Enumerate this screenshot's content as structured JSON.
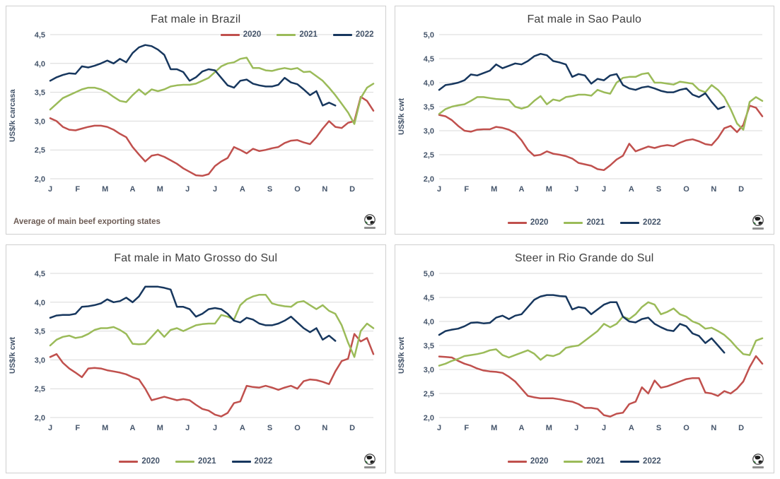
{
  "months": [
    "J",
    "F",
    "M",
    "A",
    "M",
    "J",
    "J",
    "A",
    "S",
    "O",
    "N",
    "D"
  ],
  "colors": {
    "red_2020": "#C0504D",
    "green_2021": "#9BBB59",
    "navy_2022": "#17375E",
    "gridline": "#d9d9d9",
    "axis_text": "#44546A",
    "title_text": "#3f3f3f"
  },
  "footnote": "Average  of main beef exporting states",
  "logo_name": "globe-logo",
  "chart_data": [
    {
      "type": "line",
      "title": "Fat male in Brazil",
      "ylabel": "US$/k carcasa",
      "legend_position": "top-right",
      "footnote": "Average  of main beef exporting states",
      "ylim": [
        2.0,
        4.5
      ],
      "y_ticks": [
        "2,0",
        "2,5",
        "3,0",
        "3,5",
        "4,0",
        "4,5"
      ],
      "x_tick_labels": [
        "J",
        "F",
        "M",
        "A",
        "M",
        "J",
        "J",
        "A",
        "S",
        "O",
        "N",
        "D"
      ],
      "grid": true,
      "series": [
        {
          "name": "2020",
          "color": "#C0504D",
          "values": [
            3.05,
            3.0,
            2.9,
            2.85,
            2.84,
            2.87,
            2.9,
            2.92,
            2.92,
            2.9,
            2.85,
            2.78,
            2.72,
            2.55,
            2.42,
            2.3,
            2.4,
            2.42,
            2.38,
            2.32,
            2.26,
            2.18,
            2.12,
            2.06,
            2.05,
            2.08,
            2.22,
            2.3,
            2.36,
            2.55,
            2.5,
            2.44,
            2.52,
            2.48,
            2.5,
            2.53,
            2.55,
            2.62,
            2.66,
            2.67,
            2.63,
            2.6,
            2.72,
            2.87,
            3.0,
            2.9,
            2.88,
            2.97,
            3.0,
            3.42,
            3.35,
            3.18
          ]
        },
        {
          "name": "2021",
          "color": "#9BBB59",
          "values": [
            3.2,
            3.3,
            3.4,
            3.45,
            3.5,
            3.55,
            3.58,
            3.58,
            3.55,
            3.5,
            3.42,
            3.35,
            3.33,
            3.45,
            3.55,
            3.46,
            3.55,
            3.52,
            3.55,
            3.6,
            3.62,
            3.63,
            3.63,
            3.65,
            3.7,
            3.75,
            3.85,
            3.95,
            4.0,
            4.02,
            4.08,
            4.1,
            3.92,
            3.92,
            3.88,
            3.87,
            3.9,
            3.92,
            3.9,
            3.92,
            3.85,
            3.86,
            3.78,
            3.7,
            3.58,
            3.45,
            3.3,
            3.15,
            2.95,
            3.4,
            3.58,
            3.65
          ]
        },
        {
          "name": "2022",
          "color": "#17375E",
          "values": [
            3.7,
            3.76,
            3.8,
            3.83,
            3.82,
            3.95,
            3.93,
            3.96,
            4.0,
            4.05,
            4.0,
            4.08,
            4.02,
            4.18,
            4.28,
            4.32,
            4.3,
            4.24,
            4.15,
            3.9,
            3.9,
            3.85,
            3.7,
            3.76,
            3.86,
            3.9,
            3.88,
            3.75,
            3.62,
            3.58,
            3.7,
            3.72,
            3.65,
            3.62,
            3.6,
            3.6,
            3.63,
            3.75,
            3.67,
            3.64,
            3.55,
            3.45,
            3.52,
            3.27,
            3.32,
            3.27
          ]
        }
      ]
    },
    {
      "type": "line",
      "title": "Fat male in Sao Paulo",
      "ylabel": "US$/k cwt",
      "legend_position": "bottom",
      "ylim": [
        2.0,
        5.0
      ],
      "y_ticks": [
        "2,0",
        "2,5",
        "3,0",
        "3,5",
        "4,0",
        "4,5",
        "5,0"
      ],
      "x_tick_labels": [
        "J",
        "F",
        "M",
        "A",
        "M",
        "J",
        "J",
        "A",
        "S",
        "O",
        "N",
        "D"
      ],
      "grid": true,
      "series": [
        {
          "name": "2020",
          "color": "#C0504D",
          "values": [
            3.33,
            3.3,
            3.22,
            3.1,
            3.0,
            2.98,
            3.02,
            3.03,
            3.03,
            3.08,
            3.06,
            3.02,
            2.95,
            2.8,
            2.6,
            2.48,
            2.5,
            2.57,
            2.52,
            2.5,
            2.47,
            2.42,
            2.33,
            2.3,
            2.27,
            2.2,
            2.18,
            2.28,
            2.4,
            2.48,
            2.73,
            2.57,
            2.62,
            2.67,
            2.64,
            2.68,
            2.7,
            2.68,
            2.75,
            2.8,
            2.82,
            2.78,
            2.72,
            2.7,
            2.85,
            3.05,
            3.1,
            2.97,
            3.12,
            3.52,
            3.48,
            3.3
          ]
        },
        {
          "name": "2021",
          "color": "#9BBB59",
          "values": [
            3.35,
            3.45,
            3.5,
            3.53,
            3.55,
            3.62,
            3.7,
            3.7,
            3.68,
            3.66,
            3.65,
            3.64,
            3.5,
            3.46,
            3.5,
            3.62,
            3.72,
            3.55,
            3.65,
            3.62,
            3.7,
            3.72,
            3.75,
            3.75,
            3.73,
            3.85,
            3.8,
            3.77,
            4.0,
            4.1,
            4.12,
            4.12,
            4.18,
            4.2,
            4.0,
            4.0,
            3.98,
            3.96,
            4.02,
            4.0,
            3.98,
            3.85,
            3.8,
            3.95,
            3.85,
            3.7,
            3.45,
            3.15,
            3.02,
            3.6,
            3.7,
            3.62
          ]
        },
        {
          "name": "2022",
          "color": "#17375E",
          "values": [
            3.85,
            3.95,
            3.97,
            4.0,
            4.05,
            4.17,
            4.15,
            4.2,
            4.25,
            4.38,
            4.3,
            4.35,
            4.4,
            4.38,
            4.45,
            4.55,
            4.6,
            4.57,
            4.45,
            4.42,
            4.38,
            4.12,
            4.18,
            4.15,
            3.98,
            4.08,
            4.05,
            4.15,
            4.18,
            3.95,
            3.88,
            3.85,
            3.9,
            3.92,
            3.88,
            3.83,
            3.8,
            3.8,
            3.85,
            3.88,
            3.75,
            3.7,
            3.78,
            3.6,
            3.45,
            3.5
          ]
        }
      ]
    },
    {
      "type": "line",
      "title": "Fat male in Mato Grosso do Sul",
      "ylabel": "US$/k cwt",
      "legend_position": "bottom",
      "ylim": [
        2.0,
        4.5
      ],
      "y_ticks": [
        "2,0",
        "2,5",
        "3,0",
        "3,5",
        "4,0",
        "4,5"
      ],
      "x_tick_labels": [
        "J",
        "F",
        "M",
        "A",
        "M",
        "J",
        "J",
        "A",
        "S",
        "O",
        "N",
        "D"
      ],
      "grid": true,
      "series": [
        {
          "name": "2020",
          "color": "#C0504D",
          "values": [
            3.05,
            3.1,
            2.95,
            2.85,
            2.78,
            2.7,
            2.85,
            2.86,
            2.85,
            2.82,
            2.8,
            2.78,
            2.75,
            2.7,
            2.66,
            2.5,
            2.3,
            2.33,
            2.36,
            2.33,
            2.3,
            2.32,
            2.3,
            2.22,
            2.15,
            2.12,
            2.05,
            2.02,
            2.08,
            2.25,
            2.28,
            2.55,
            2.53,
            2.52,
            2.55,
            2.52,
            2.48,
            2.52,
            2.55,
            2.5,
            2.63,
            2.66,
            2.65,
            2.62,
            2.58,
            2.8,
            2.98,
            3.02,
            3.45,
            3.32,
            3.38,
            3.1
          ]
        },
        {
          "name": "2021",
          "color": "#9BBB59",
          "values": [
            3.25,
            3.35,
            3.4,
            3.42,
            3.38,
            3.4,
            3.45,
            3.52,
            3.55,
            3.55,
            3.57,
            3.52,
            3.45,
            3.28,
            3.27,
            3.28,
            3.4,
            3.52,
            3.4,
            3.52,
            3.55,
            3.5,
            3.55,
            3.6,
            3.62,
            3.63,
            3.63,
            3.78,
            3.75,
            3.7,
            3.95,
            4.05,
            4.1,
            4.13,
            4.13,
            3.98,
            3.95,
            3.93,
            3.92,
            4.0,
            4.02,
            3.95,
            3.88,
            3.95,
            3.85,
            3.8,
            3.6,
            3.3,
            3.05,
            3.5,
            3.63,
            3.55
          ]
        },
        {
          "name": "2022",
          "color": "#17375E",
          "values": [
            3.73,
            3.77,
            3.78,
            3.78,
            3.8,
            3.92,
            3.93,
            3.95,
            3.98,
            4.05,
            4.0,
            4.02,
            4.08,
            4.0,
            4.1,
            4.27,
            4.27,
            4.27,
            4.25,
            4.22,
            3.92,
            3.92,
            3.88,
            3.75,
            3.8,
            3.88,
            3.9,
            3.88,
            3.8,
            3.68,
            3.65,
            3.73,
            3.7,
            3.63,
            3.6,
            3.6,
            3.63,
            3.68,
            3.75,
            3.65,
            3.55,
            3.48,
            3.55,
            3.35,
            3.42,
            3.33
          ]
        }
      ]
    },
    {
      "type": "line",
      "title": "Steer  in Rio Grande do Sul",
      "ylabel": "US$/k cwt",
      "legend_position": "bottom",
      "ylim": [
        2.0,
        5.0
      ],
      "y_ticks": [
        "2,0",
        "2,5",
        "3,0",
        "3,5",
        "4,0",
        "4,5",
        "5,0"
      ],
      "x_tick_labels": [
        "J",
        "F",
        "M",
        "A",
        "M",
        "J",
        "J",
        "A",
        "S",
        "O",
        "N",
        "D"
      ],
      "grid": true,
      "series": [
        {
          "name": "2020",
          "color": "#C0504D",
          "values": [
            3.27,
            3.26,
            3.25,
            3.18,
            3.12,
            3.08,
            3.02,
            2.98,
            2.96,
            2.95,
            2.93,
            2.85,
            2.75,
            2.6,
            2.45,
            2.42,
            2.4,
            2.4,
            2.4,
            2.38,
            2.35,
            2.33,
            2.28,
            2.2,
            2.2,
            2.18,
            2.05,
            2.02,
            2.08,
            2.1,
            2.28,
            2.33,
            2.63,
            2.5,
            2.77,
            2.62,
            2.65,
            2.7,
            2.75,
            2.8,
            2.82,
            2.82,
            2.52,
            2.5,
            2.45,
            2.55,
            2.5,
            2.6,
            2.75,
            3.05,
            3.28,
            3.12
          ]
        },
        {
          "name": "2021",
          "color": "#9BBB59",
          "values": [
            3.08,
            3.12,
            3.18,
            3.22,
            3.28,
            3.3,
            3.32,
            3.35,
            3.4,
            3.42,
            3.3,
            3.25,
            3.3,
            3.35,
            3.4,
            3.33,
            3.2,
            3.3,
            3.28,
            3.33,
            3.45,
            3.48,
            3.5,
            3.6,
            3.7,
            3.8,
            3.95,
            3.88,
            3.95,
            4.1,
            4.05,
            4.15,
            4.3,
            4.4,
            4.35,
            4.15,
            4.2,
            4.27,
            4.15,
            4.1,
            4.0,
            3.95,
            3.85,
            3.87,
            3.8,
            3.72,
            3.6,
            3.45,
            3.32,
            3.3,
            3.6,
            3.65
          ]
        },
        {
          "name": "2022",
          "color": "#17375E",
          "values": [
            3.72,
            3.8,
            3.83,
            3.85,
            3.9,
            3.97,
            3.98,
            3.96,
            3.97,
            4.08,
            4.12,
            4.05,
            4.12,
            4.15,
            4.3,
            4.45,
            4.52,
            4.55,
            4.55,
            4.53,
            4.52,
            4.25,
            4.3,
            4.28,
            4.15,
            4.25,
            4.35,
            4.4,
            4.4,
            4.1,
            4.0,
            3.98,
            4.05,
            4.08,
            3.95,
            3.88,
            3.82,
            3.8,
            3.95,
            3.9,
            3.75,
            3.7,
            3.55,
            3.65,
            3.5,
            3.35
          ]
        }
      ]
    }
  ]
}
